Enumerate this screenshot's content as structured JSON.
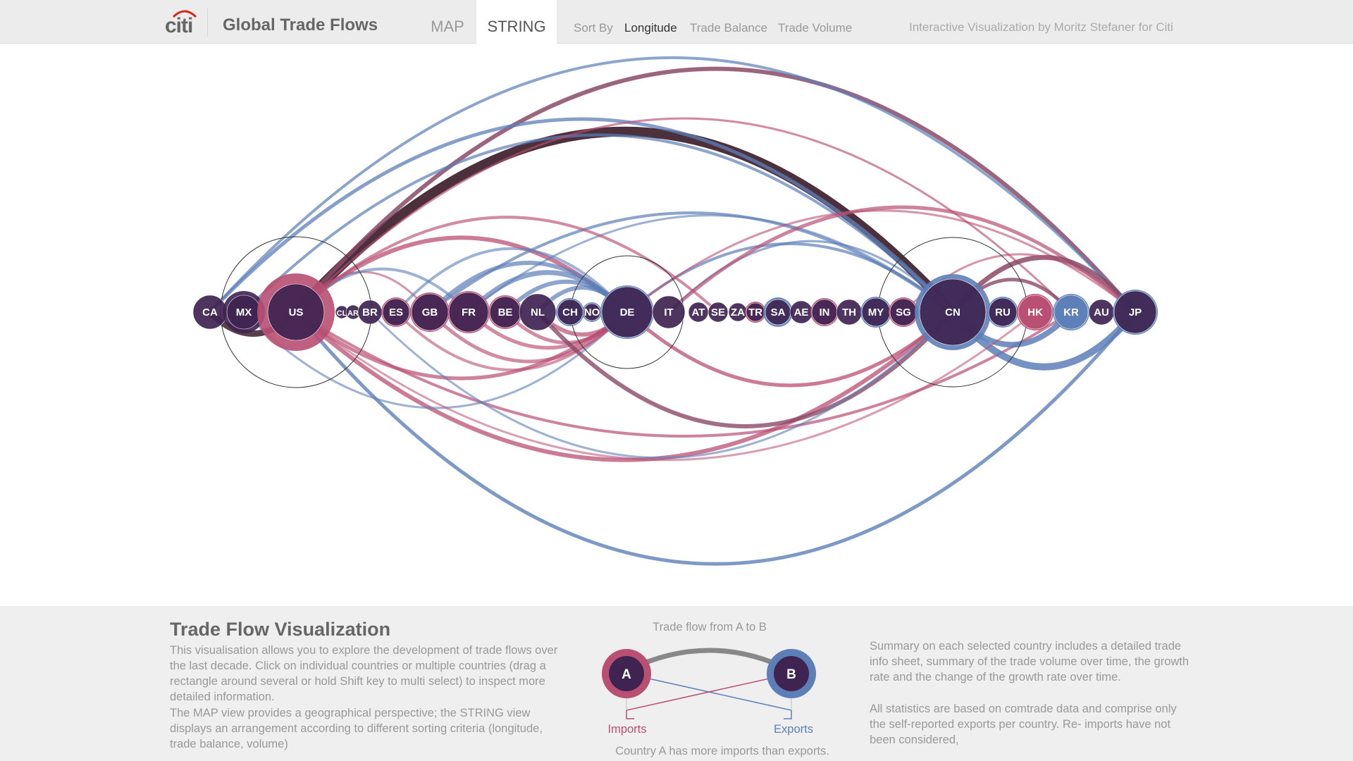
{
  "header": {
    "logo_text": "citi",
    "title": "Global Trade Flows",
    "tabs": [
      {
        "label": "MAP",
        "active": false
      },
      {
        "label": "STRING",
        "active": true
      }
    ],
    "sort_label": "Sort By",
    "sort_options": [
      {
        "label": "Longitude",
        "active": true
      },
      {
        "label": "Trade Balance",
        "active": false
      },
      {
        "label": "Trade Volume",
        "active": false
      }
    ],
    "credit": "Interactive Visualization by Moritz Stefaner for Citi"
  },
  "colors": {
    "imports": "#b94f72",
    "exports": "#5d7fb8",
    "node": "#3f2452",
    "selection": "#333333"
  },
  "countries": [
    {
      "code": "CA",
      "balance": "neutral",
      "selected": false
    },
    {
      "code": "MX",
      "balance": "neutral",
      "selected": false
    },
    {
      "code": "US",
      "balance": "imports",
      "selected": true
    },
    {
      "code": "CL",
      "balance": "neutral",
      "selected": false
    },
    {
      "code": "AR",
      "balance": "neutral",
      "selected": false
    },
    {
      "code": "BR",
      "balance": "neutral",
      "selected": false
    },
    {
      "code": "ES",
      "balance": "imports",
      "selected": false
    },
    {
      "code": "GB",
      "balance": "imports",
      "selected": false
    },
    {
      "code": "FR",
      "balance": "imports",
      "selected": false
    },
    {
      "code": "BE",
      "balance": "imports",
      "selected": false
    },
    {
      "code": "NL",
      "balance": "neutral",
      "selected": false
    },
    {
      "code": "CH",
      "balance": "exports",
      "selected": false
    },
    {
      "code": "NO",
      "balance": "exports",
      "selected": false
    },
    {
      "code": "DE",
      "balance": "exports",
      "selected": true
    },
    {
      "code": "IT",
      "balance": "neutral",
      "selected": false
    },
    {
      "code": "AT",
      "balance": "neutral",
      "selected": false
    },
    {
      "code": "SE",
      "balance": "neutral",
      "selected": false
    },
    {
      "code": "ZA",
      "balance": "neutral",
      "selected": false
    },
    {
      "code": "TR",
      "balance": "imports",
      "selected": false
    },
    {
      "code": "SA",
      "balance": "exports",
      "selected": false
    },
    {
      "code": "AE",
      "balance": "neutral",
      "selected": false
    },
    {
      "code": "IN",
      "balance": "imports",
      "selected": false
    },
    {
      "code": "TH",
      "balance": "neutral",
      "selected": false
    },
    {
      "code": "MY",
      "balance": "exports",
      "selected": false
    },
    {
      "code": "SG",
      "balance": "imports",
      "selected": false
    },
    {
      "code": "CN",
      "balance": "exports",
      "selected": true
    },
    {
      "code": "RU",
      "balance": "exports",
      "selected": false
    },
    {
      "code": "HK",
      "balance": "imports",
      "selected": false
    },
    {
      "code": "KR",
      "balance": "exports",
      "selected": false
    },
    {
      "code": "AU",
      "balance": "neutral",
      "selected": false
    },
    {
      "code": "JP",
      "balance": "exports",
      "selected": false
    }
  ],
  "footer": {
    "title": "Trade Flow Visualization",
    "para1": "This visualisation allows you to explore the development of trade flows over the last decade. Click on individual countries or multiple countries (drag a rectangle around several or hold Shift key to multi select) to inspect more detailed information.",
    "para2": "The MAP view provides a geographical perspective; the STRING view displays an arrangement according to different sorting criteria (longitude, trade balance, volume)",
    "legend": {
      "title": "Trade flow from A to B",
      "node_a": "A",
      "node_b": "B",
      "imports": "Imports",
      "exports": "Exports",
      "caption": "Country A has more imports than exports."
    },
    "right1": "Summary on each selected country includes a detailed trade info sheet, summary of the trade volume over time, the growth rate and the change of the growth rate over time.",
    "right2": "All statistics are based on comtrade data and comprise only the self-reported exports per country. Re- imports have not been considered,"
  }
}
